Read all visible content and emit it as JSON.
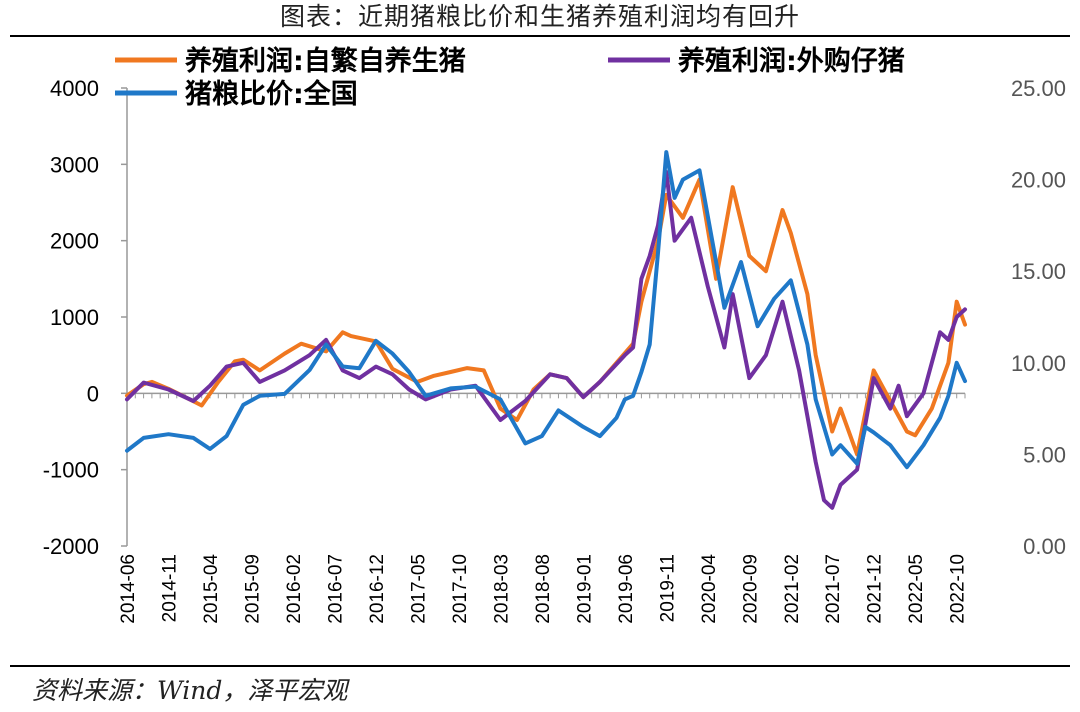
{
  "header": {
    "title": "图表：近期猪粮比价和生猪养殖利润均有回升"
  },
  "footer": {
    "source": "资料来源：Wind，泽平宏观"
  },
  "chart_data": {
    "type": "line",
    "title": "图表：近期猪粮比价和生猪养殖利润均有回升",
    "x_tick_labels": [
      "2014-06",
      "2014-11",
      "2015-04",
      "2015-09",
      "2016-02",
      "2016-07",
      "2016-12",
      "2017-05",
      "2017-10",
      "2018-03",
      "2018-08",
      "2019-01",
      "2019-06",
      "2019-11",
      "2020-04",
      "2020-09",
      "2021-02",
      "2021-07",
      "2021-12",
      "2022-05",
      "2022-10"
    ],
    "x_range": [
      "2014-06",
      "2022-11"
    ],
    "y_left": {
      "ylim": [
        -2000,
        4000
      ],
      "ticks": [
        "4000",
        "3000",
        "2000",
        "1000",
        "0",
        "-1000",
        "-2000"
      ]
    },
    "y_right": {
      "ylim": [
        0,
        25
      ],
      "ticks": [
        "25.00",
        "20.00",
        "15.00",
        "10.00",
        "5.00",
        "0.00"
      ]
    },
    "grid": false,
    "legend": {
      "placement": "top",
      "columns": 2
    },
    "colors": {
      "series1": "#F07820",
      "series2": "#7030A0",
      "series3": "#1F78C8"
    },
    "series": [
      {
        "name": "养殖利润:自繁自养生猪",
        "axis": "left",
        "x": [
          "2014-06",
          "2014-08",
          "2014-09",
          "2014-11",
          "2015-01",
          "2015-03",
          "2015-05",
          "2015-07",
          "2015-08",
          "2015-10",
          "2016-01",
          "2016-03",
          "2016-06",
          "2016-08",
          "2016-09",
          "2016-12",
          "2017-02",
          "2017-05",
          "2017-07",
          "2017-09",
          "2017-11",
          "2018-01",
          "2018-03",
          "2018-05",
          "2018-07",
          "2018-09",
          "2018-11",
          "2019-01",
          "2019-03",
          "2019-05",
          "2019-07",
          "2019-08",
          "2019-09",
          "2019-10",
          "2019-11",
          "2020-01",
          "2020-03",
          "2020-05",
          "2020-07",
          "2020-09",
          "2020-11",
          "2021-01",
          "2021-02",
          "2021-04",
          "2021-05",
          "2021-07",
          "2021-08",
          "2021-10",
          "2021-12",
          "2022-02",
          "2022-04",
          "2022-05",
          "2022-07",
          "2022-09",
          "2022-10",
          "2022-11"
        ],
        "values": [
          -30,
          120,
          150,
          60,
          -50,
          -160,
          150,
          420,
          440,
          300,
          520,
          650,
          550,
          800,
          750,
          680,
          320,
          150,
          230,
          280,
          330,
          300,
          -200,
          -350,
          50,
          250,
          200,
          -50,
          150,
          400,
          650,
          1200,
          1600,
          2000,
          2600,
          2300,
          2800,
          1500,
          2700,
          1800,
          1600,
          2400,
          2100,
          1300,
          500,
          -500,
          -200,
          -800,
          300,
          -100,
          -500,
          -550,
          -200,
          400,
          1200,
          900
        ]
      },
      {
        "name": "养殖利润:外购仔猪",
        "axis": "left",
        "x": [
          "2014-06",
          "2014-08",
          "2014-11",
          "2015-02",
          "2015-04",
          "2015-06",
          "2015-08",
          "2015-10",
          "2016-01",
          "2016-04",
          "2016-06",
          "2016-08",
          "2016-10",
          "2016-12",
          "2017-02",
          "2017-04",
          "2017-06",
          "2017-09",
          "2017-12",
          "2018-03",
          "2018-06",
          "2018-09",
          "2018-11",
          "2019-01",
          "2019-03",
          "2019-06",
          "2019-07",
          "2019-08",
          "2019-09",
          "2019-10",
          "2019-11",
          "2019-12",
          "2020-02",
          "2020-04",
          "2020-06",
          "2020-07",
          "2020-09",
          "2020-11",
          "2021-01",
          "2021-03",
          "2021-04",
          "2021-05",
          "2021-06",
          "2021-07",
          "2021-08",
          "2021-10",
          "2021-12",
          "2022-02",
          "2022-03",
          "2022-04",
          "2022-06",
          "2022-08",
          "2022-09",
          "2022-10",
          "2022-11"
        ],
        "values": [
          -80,
          140,
          50,
          -100,
          100,
          350,
          400,
          150,
          300,
          500,
          700,
          300,
          200,
          350,
          250,
          50,
          -80,
          50,
          100,
          -350,
          -100,
          250,
          200,
          -50,
          150,
          500,
          600,
          1500,
          1800,
          2200,
          2900,
          2000,
          2300,
          1400,
          600,
          1300,
          200,
          500,
          1200,
          300,
          -300,
          -900,
          -1400,
          -1500,
          -1200,
          -1000,
          200,
          -200,
          100,
          -300,
          0,
          800,
          700,
          1000,
          1100
        ]
      },
      {
        "name": "猪粮比价:全国",
        "axis": "right",
        "x": [
          "2014-06",
          "2014-08",
          "2014-11",
          "2015-02",
          "2015-04",
          "2015-06",
          "2015-08",
          "2015-10",
          "2016-01",
          "2016-04",
          "2016-06",
          "2016-08",
          "2016-10",
          "2016-12",
          "2017-02",
          "2017-04",
          "2017-06",
          "2017-09",
          "2017-12",
          "2018-03",
          "2018-06",
          "2018-08",
          "2018-10",
          "2018-12",
          "2019-01",
          "2019-03",
          "2019-05",
          "2019-06",
          "2019-07",
          "2019-08",
          "2019-09",
          "2019-10",
          "2019-11",
          "2019-12",
          "2020-01",
          "2020-03",
          "2020-04",
          "2020-06",
          "2020-08",
          "2020-10",
          "2020-12",
          "2021-02",
          "2021-04",
          "2021-05",
          "2021-06",
          "2021-07",
          "2021-08",
          "2021-10",
          "2021-11",
          "2021-12",
          "2022-02",
          "2022-04",
          "2022-06",
          "2022-08",
          "2022-09",
          "2022-10",
          "2022-11"
        ],
        "values": [
          5.2,
          5.9,
          6.1,
          5.9,
          5.3,
          6.0,
          7.7,
          8.2,
          8.3,
          9.6,
          11.0,
          9.8,
          9.7,
          11.2,
          10.5,
          9.5,
          8.2,
          8.6,
          8.7,
          8.0,
          5.6,
          6.0,
          7.4,
          6.8,
          6.5,
          6.0,
          7.0,
          8.0,
          8.2,
          9.5,
          11.0,
          16.0,
          21.5,
          19.0,
          20.0,
          20.5,
          18.0,
          13.0,
          15.5,
          12.0,
          13.5,
          14.5,
          11.0,
          8.0,
          6.5,
          5.0,
          5.5,
          4.5,
          6.5,
          6.2,
          5.5,
          4.3,
          5.5,
          7.0,
          8.2,
          10.0,
          9.0
        ]
      }
    ]
  }
}
